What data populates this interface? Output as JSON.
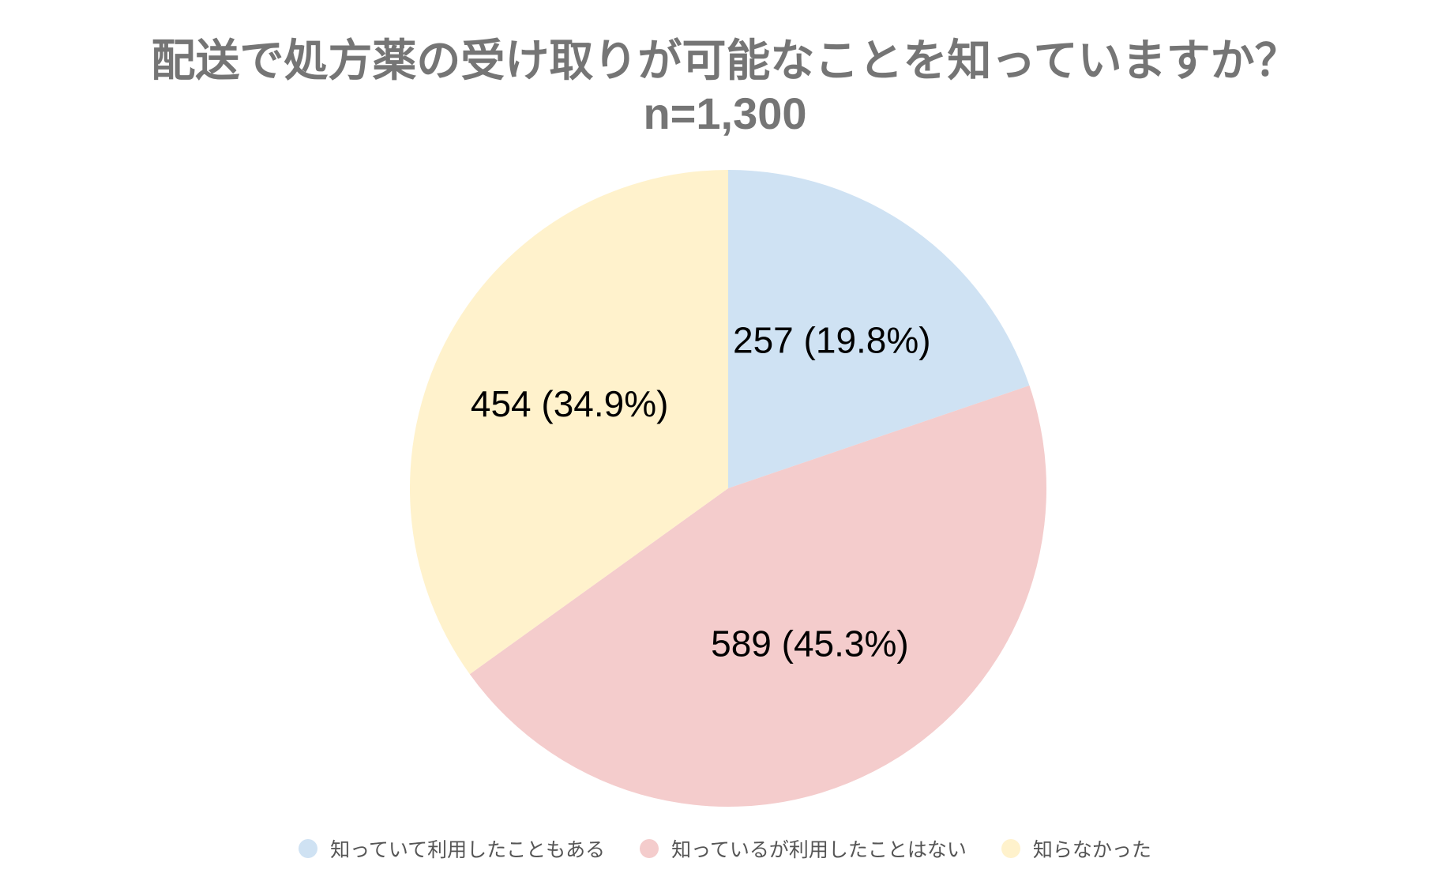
{
  "chart_data": {
    "type": "pie",
    "title": "配送で処方薬の受け取りが可能なことを知っていますか？",
    "subtitle": "n=1,300",
    "legend_position": "bottom",
    "slices": [
      {
        "name": "知っていて利用したこともある",
        "value": 257,
        "percent_label": "257 (19.8%)",
        "color": "#cfe2f3"
      },
      {
        "name": "知っているが利用したことはない",
        "value": 589,
        "percent_label": "589 (45.3%)",
        "color": "#f4cccc"
      },
      {
        "name": "知らなかった",
        "value": 454,
        "percent_label": "454 (34.9%)",
        "color": "#fff2cc"
      }
    ]
  }
}
